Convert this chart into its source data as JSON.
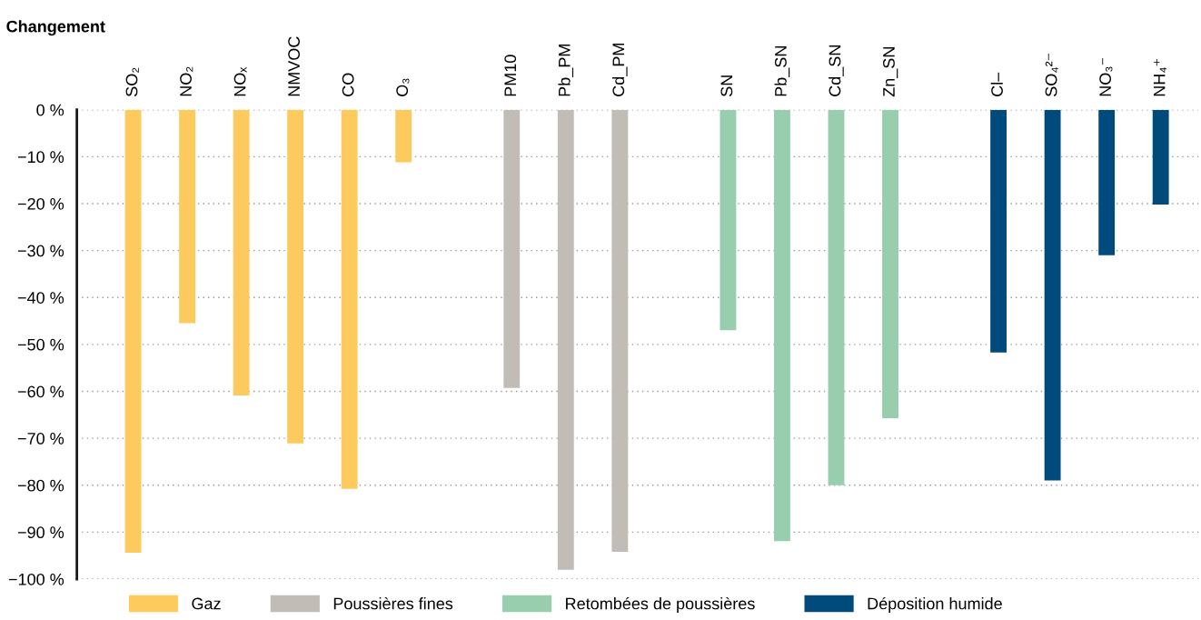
{
  "chart_data": {
    "type": "bar",
    "title": "Changement",
    "categories": [
      "SO₂",
      "NO₂",
      "NOₓ",
      "NMVOC",
      "CO",
      "O₃",
      null,
      "PM10",
      "Pb_PM",
      "Cd_PM",
      null,
      "SN",
      "Pb_SN",
      "Cd_SN",
      "Zn_SN",
      null,
      "Cl–",
      "SO₄²⁻",
      "NO₃⁻",
      "NH₄⁺"
    ],
    "series": [
      {
        "name": "Gaz",
        "color": "#fdca5e",
        "values": [
          -94.4,
          -45.5,
          -60.9,
          -71.1,
          -80.8,
          -11.2,
          null,
          null,
          null,
          null,
          null,
          null,
          null,
          null,
          null,
          null,
          null,
          null,
          null,
          null
        ]
      },
      {
        "name": "Poussières fines",
        "color": "#c2bcb7",
        "values": [
          null,
          null,
          null,
          null,
          null,
          null,
          null,
          -59.3,
          -98,
          -94.2,
          null,
          null,
          null,
          null,
          null,
          null,
          null,
          null,
          null,
          null
        ]
      },
      {
        "name": "Retombées de poussières",
        "color": "#98cdad",
        "values": [
          null,
          null,
          null,
          null,
          null,
          null,
          null,
          null,
          null,
          null,
          null,
          -47,
          -91.9,
          -80,
          -65.7,
          null,
          null,
          null,
          null,
          null
        ]
      },
      {
        "name": "Déposition humide",
        "color": "#004b7c",
        "values": [
          null,
          null,
          null,
          null,
          null,
          null,
          null,
          null,
          null,
          null,
          null,
          null,
          null,
          null,
          null,
          null,
          -51.7,
          -79,
          -31,
          -20.2
        ]
      }
    ],
    "ylim": [
      -100,
      0
    ],
    "yticks": [
      {
        "value": 0,
        "label": "0 %"
      },
      {
        "value": -10,
        "label": "−10 %"
      },
      {
        "value": -20,
        "label": "−20 %"
      },
      {
        "value": -30,
        "label": "−30 %"
      },
      {
        "value": -40,
        "label": "−40 %"
      },
      {
        "value": -50,
        "label": "−50 %"
      },
      {
        "value": -60,
        "label": "−60 %"
      },
      {
        "value": -70,
        "label": "−70 %"
      },
      {
        "value": -80,
        "label": "−80 %"
      },
      {
        "value": -90,
        "label": "−90 %"
      },
      {
        "value": -100,
        "label": "−100 %"
      }
    ],
    "grid": "y",
    "legend": "bottom"
  }
}
